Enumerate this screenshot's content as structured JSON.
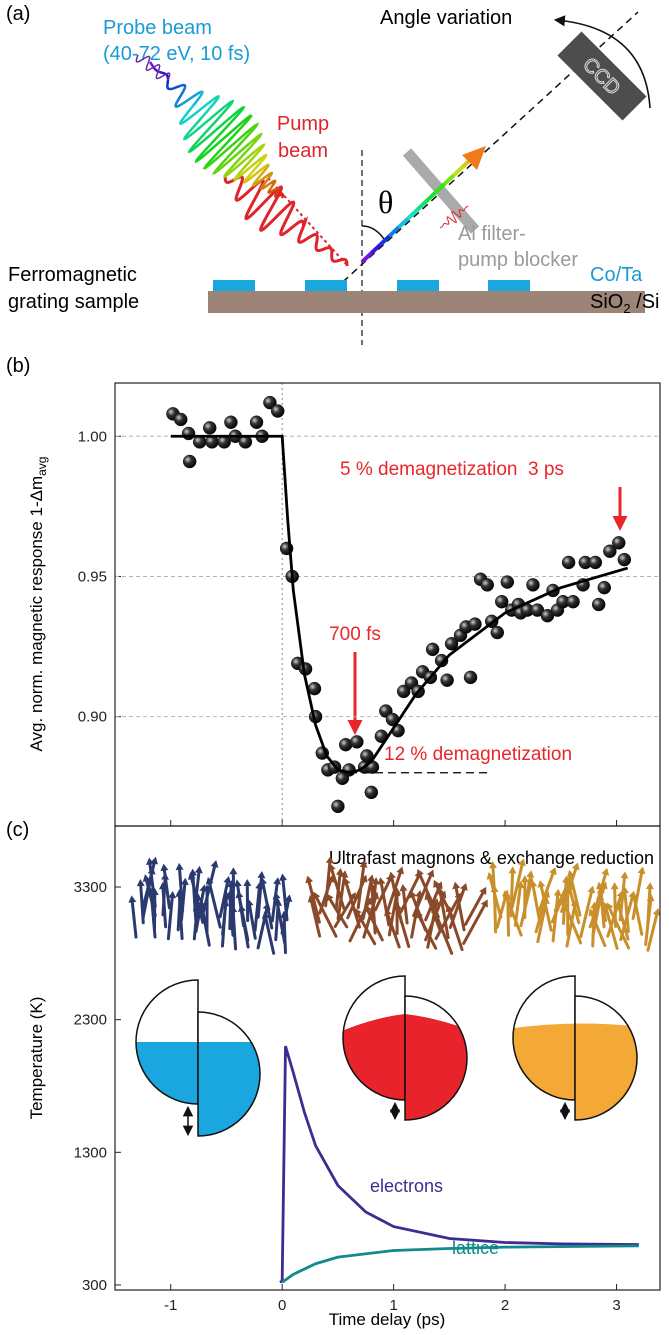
{
  "diagram": {
    "panel_label": "(a)",
    "probe_label": [
      "Probe beam",
      "(40-72 eV, 10 fs)"
    ],
    "pump_label": [
      "Pump",
      "beam"
    ],
    "angle_label": "Angle variation",
    "detector": "CCD",
    "angle_symbol": "θ",
    "filter_label": [
      "Al filter-",
      "pump blocker"
    ],
    "sample_label": [
      "Ferromagnetic",
      "grating sample"
    ],
    "film_label": "Co/Ta",
    "substrate_label": [
      "SiO",
      "2",
      " /Si"
    ]
  },
  "chart_data": [
    {
      "type": "scatter",
      "label": "(b)",
      "ylabel": "Avg. norm. magnetic response 1-Δm",
      "ylabel_sub": "avg",
      "xlim": [
        -1.5,
        3.39
      ],
      "xticks": [
        -1,
        0,
        1,
        2,
        3
      ],
      "xtick_labels": false,
      "ylim": [
        0.861,
        1.019
      ],
      "yticks": [
        {
          "value": 0.9,
          "label": "0.90"
        },
        0.95,
        {
          "value": 1,
          "label": "1.00"
        }
      ],
      "grid": true,
      "vline": 0,
      "series": [
        {
          "type": "scatter",
          "color": "#111111",
          "x": [
            -0.98,
            -0.91,
            -0.84,
            -0.83,
            -0.74,
            -0.65,
            -0.63,
            -0.52,
            -0.46,
            -0.42,
            -0.33,
            -0.23,
            -0.18,
            -0.11,
            -0.04,
            0.04,
            0.09,
            0.14,
            0.21,
            0.29,
            0.3,
            0.36,
            0.41,
            0.47,
            0.5,
            0.54,
            0.57,
            0.6,
            0.67,
            0.74,
            0.76,
            0.8,
            0.81,
            0.89,
            0.93,
            0.99,
            1.04,
            1.09,
            1.16,
            1.22,
            1.26,
            1.33,
            1.35,
            1.43,
            1.48,
            1.52,
            1.6,
            1.65,
            1.69,
            1.73,
            1.78,
            1.84,
            1.88,
            1.93,
            1.97,
            2.02,
            2.06,
            2.12,
            2.14,
            2.2,
            2.25,
            2.29,
            2.38,
            2.43,
            2.47,
            2.52,
            2.57,
            2.61,
            2.7,
            2.72,
            2.81,
            2.84,
            2.89,
            2.94,
            3.02,
            3.07
          ],
          "values": [
            1.008,
            1.006,
            1.001,
            0.991,
            0.998,
            1.003,
            0.998,
            0.998,
            1.005,
            1.0,
            0.998,
            1.005,
            1.0,
            1.012,
            1.009,
            0.96,
            0.95,
            0.919,
            0.917,
            0.91,
            0.9,
            0.887,
            0.881,
            0.882,
            0.868,
            0.878,
            0.89,
            0.881,
            0.891,
            0.882,
            0.886,
            0.873,
            0.882,
            0.893,
            0.902,
            0.899,
            0.895,
            0.909,
            0.912,
            0.909,
            0.916,
            0.914,
            0.924,
            0.92,
            0.913,
            0.926,
            0.929,
            0.932,
            0.914,
            0.933,
            0.949,
            0.947,
            0.934,
            0.93,
            0.941,
            0.948,
            0.938,
            0.94,
            0.937,
            0.938,
            0.947,
            0.938,
            0.936,
            0.945,
            0.938,
            0.941,
            0.955,
            0.941,
            0.947,
            0.955,
            0.955,
            0.94,
            0.946,
            0.959,
            0.962,
            0.956
          ]
        },
        {
          "type": "line",
          "color": "#000000",
          "x": [
            -1,
            0,
            0.05,
            0.1,
            0.2,
            0.3,
            0.4,
            0.5,
            0.6,
            0.7,
            0.8,
            1.0,
            1.2,
            1.5,
            2.0,
            2.5,
            3.1
          ],
          "values": [
            1.0,
            1.0,
            0.97,
            0.945,
            0.915,
            0.897,
            0.886,
            0.881,
            0.88,
            0.881,
            0.884,
            0.896,
            0.908,
            0.922,
            0.937,
            0.946,
            0.953
          ]
        }
      ],
      "hlines": [
        {
          "y": 0.88,
          "x": [
            0.6,
            1.85
          ],
          "color": "#000000"
        }
      ],
      "annotation_color": "#e8262b",
      "annotations": [
        "5 % demagnetization  3 ps",
        "700 fs",
        "12 % demagnetization"
      ]
    },
    {
      "type": "line",
      "label": "(c)",
      "title": "Ultrafast magnons & exchange reduction",
      "xlabel": "Time delay (ps)",
      "ylabel": "Temperature (K)",
      "xlim": [
        -1.5,
        3.39
      ],
      "xticks": [
        -1,
        0,
        1,
        2,
        3
      ],
      "xtick_labels": true,
      "ylim": [
        262,
        3760
      ],
      "yticks": [
        300,
        1300,
        2300,
        3300
      ],
      "grid": false,
      "series": [
        {
          "name": "electrons",
          "color": "#3d2c91",
          "x": [
            -0.02,
            0,
            0.03,
            0.1,
            0.2,
            0.3,
            0.5,
            0.75,
            1,
            1.5,
            2,
            2.5,
            3.2
          ],
          "values": [
            320,
            330,
            2100,
            1900,
            1600,
            1350,
            1050,
            850,
            740,
            650,
            620,
            610,
            605
          ]
        },
        {
          "name": "lattice",
          "color": "#12898a",
          "x": [
            0,
            0.1,
            0.3,
            0.5,
            1,
            1.5,
            2,
            3.2
          ],
          "values": [
            320,
            380,
            460,
            510,
            560,
            575,
            585,
            595
          ]
        }
      ]
    }
  ]
}
